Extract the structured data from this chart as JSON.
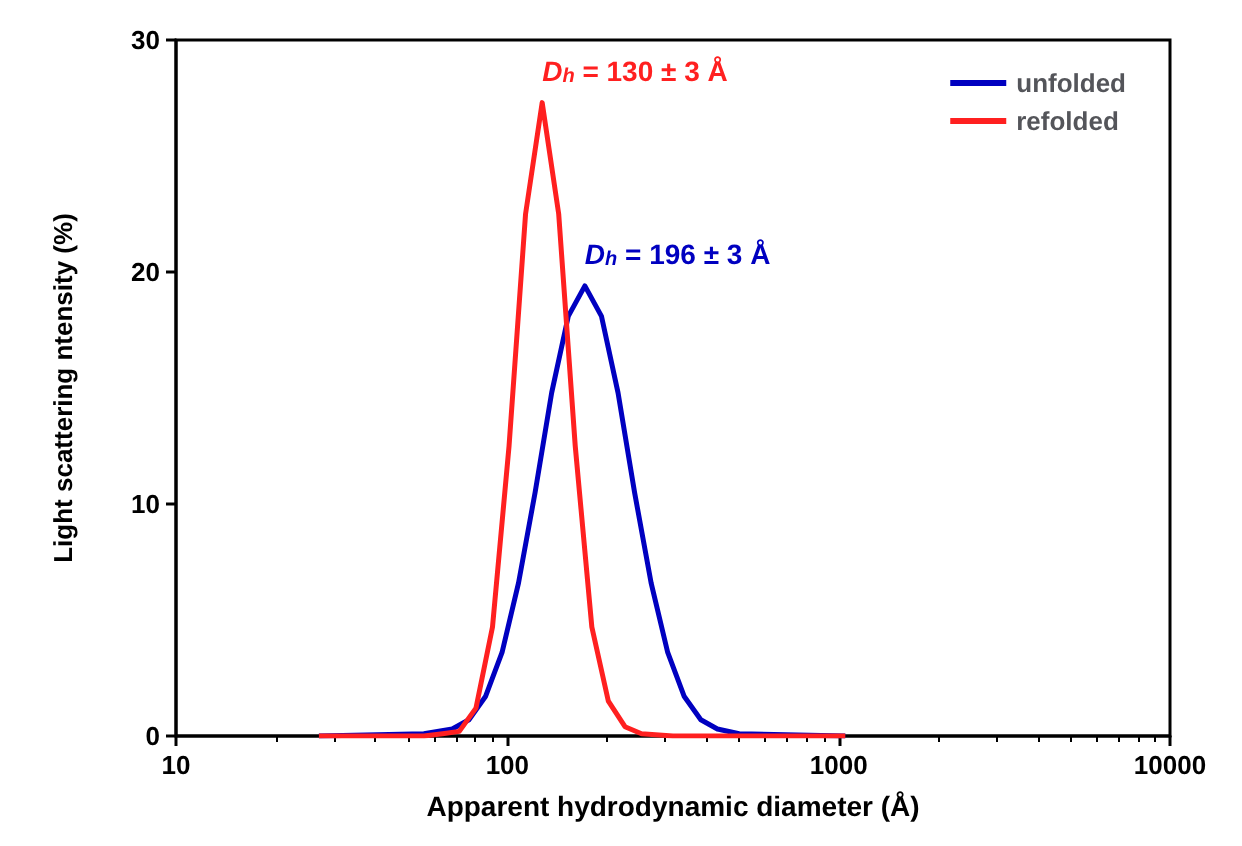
{
  "chart_data": {
    "type": "line",
    "xlabel": "Apparent hydrodynamic diameter (Å)",
    "ylabel": "Light scattering ntensity (%)",
    "log": "x",
    "xlim": [
      10,
      10000
    ],
    "xticks": [
      10,
      100,
      1000,
      10000
    ],
    "ylim": [
      0,
      30
    ],
    "yticks": [
      0,
      10,
      20,
      30
    ],
    "grid": false,
    "legend": "top right",
    "marker": "none",
    "line_style": "solid",
    "series": [
      {
        "name": "unfolded",
        "color": "#0000c0",
        "x": [
          27,
          56,
          68.2,
          76.6,
          85.9,
          96.4,
          108.1,
          121.3,
          136.1,
          152.8,
          171.4,
          192.3,
          215.8,
          242.1,
          271.6,
          304.8,
          342,
          383.7,
          430.5,
          501,
          1047
        ],
        "values": [
          0,
          0.1,
          0.3,
          0.7,
          1.7,
          3.6,
          6.6,
          10.5,
          14.8,
          18.1,
          19.4,
          18.1,
          14.8,
          10.5,
          6.6,
          3.6,
          1.7,
          0.7,
          0.3,
          0.1,
          0
        ]
      },
      {
        "name": "refolded",
        "color": "#ff2020",
        "x": [
          27,
          56,
          63.8,
          71.6,
          80.4,
          90.2,
          101.2,
          113.5,
          127.4,
          142.9,
          160.3,
          179.9,
          201.8,
          226.5,
          254.1,
          316,
          1047
        ],
        "values": [
          0,
          0,
          0.1,
          0.2,
          1.2,
          4.7,
          12.5,
          22.5,
          27.3,
          22.5,
          12.5,
          4.7,
          1.5,
          0.4,
          0.1,
          0,
          0
        ]
      }
    ],
    "annotations": [
      {
        "text": "D$_{h}$ = 196 ± 3 Å",
        "x": 171.4,
        "y": 19.4
      },
      {
        "text": "D$_{h}$ = 130 ± 3 Å",
        "x": 127.4,
        "y": 27.3
      }
    ]
  }
}
